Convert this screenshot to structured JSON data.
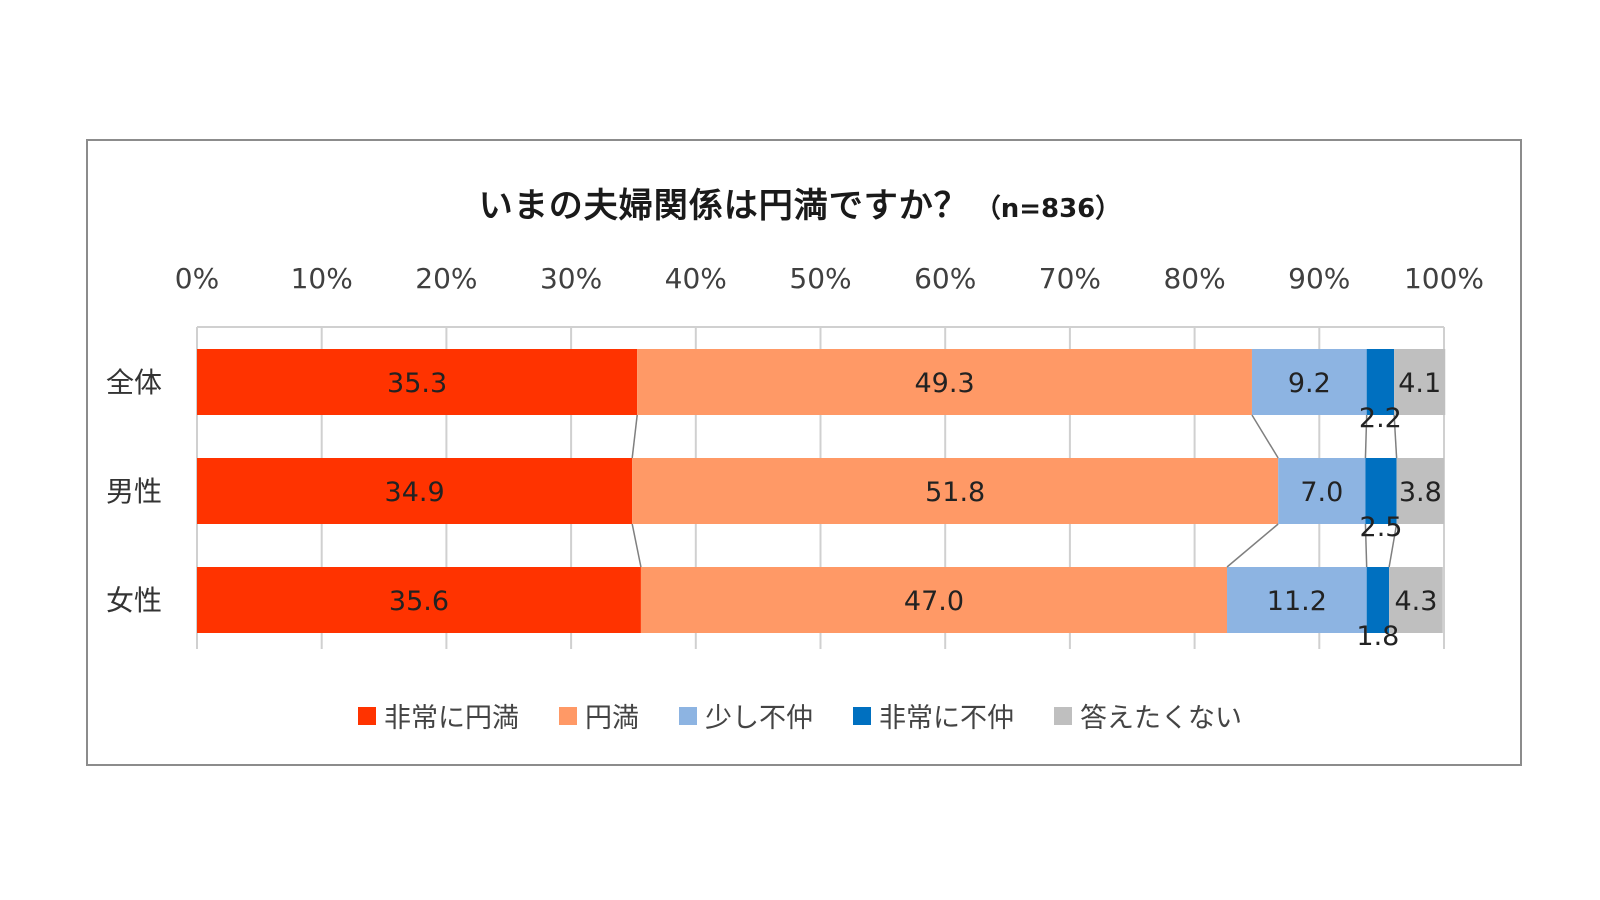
{
  "title": "いまの夫婦関係は円満ですか？",
  "subtitle": "（n=836）",
  "chart_data": {
    "type": "bar",
    "orientation": "horizontal-stacked-100",
    "xlim": [
      0,
      100
    ],
    "x_ticks": [
      "0%",
      "10%",
      "20%",
      "30%",
      "40%",
      "50%",
      "60%",
      "70%",
      "80%",
      "90%",
      "100%"
    ],
    "grid": true,
    "legend_position": "bottom",
    "categories": [
      "全体",
      "男性",
      "女性"
    ],
    "series": [
      {
        "name": "非常に円満",
        "color": "#ff3300",
        "values": [
          35.3,
          34.9,
          35.6
        ],
        "labels": [
          "35.3",
          "34.9",
          "35.6"
        ]
      },
      {
        "name": "円満",
        "color": "#ff9966",
        "values": [
          49.3,
          51.8,
          47.0
        ],
        "labels": [
          "49.3",
          "51.8",
          "47.0"
        ]
      },
      {
        "name": "少し不仲",
        "color": "#8db4e2",
        "values": [
          9.2,
          7.0,
          11.2
        ],
        "labels": [
          "9.2",
          "7.0",
          "11.2"
        ]
      },
      {
        "name": "非常に不仲",
        "color": "#0070c0",
        "values": [
          2.2,
          2.5,
          1.8
        ],
        "labels": [
          "2.2",
          "2.5",
          "1.8"
        ]
      },
      {
        "name": "答えたくない",
        "color": "#bfbfbf",
        "values": [
          4.1,
          3.8,
          4.3
        ],
        "labels": [
          "4.1",
          "3.8",
          "4.3"
        ]
      }
    ]
  }
}
